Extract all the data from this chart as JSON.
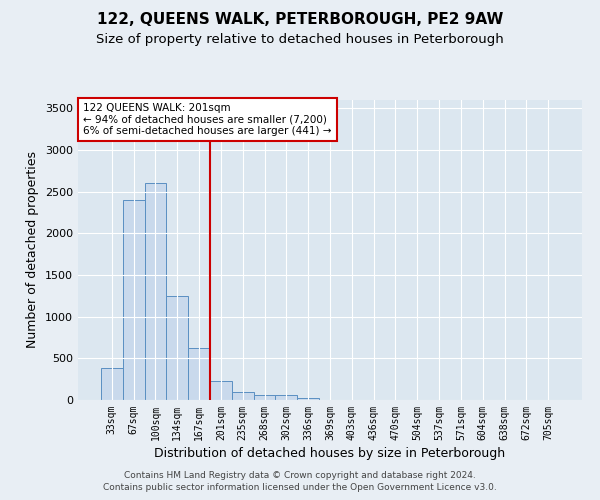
{
  "title": "122, QUEENS WALK, PETERBOROUGH, PE2 9AW",
  "subtitle": "Size of property relative to detached houses in Peterborough",
  "xlabel": "Distribution of detached houses by size in Peterborough",
  "ylabel": "Number of detached properties",
  "categories": [
    "33sqm",
    "67sqm",
    "100sqm",
    "134sqm",
    "167sqm",
    "201sqm",
    "235sqm",
    "268sqm",
    "302sqm",
    "336sqm",
    "369sqm",
    "403sqm",
    "436sqm",
    "470sqm",
    "504sqm",
    "537sqm",
    "571sqm",
    "604sqm",
    "638sqm",
    "672sqm",
    "705sqm"
  ],
  "values": [
    380,
    2400,
    2600,
    1250,
    630,
    230,
    100,
    65,
    55,
    30,
    0,
    0,
    0,
    0,
    0,
    0,
    0,
    0,
    0,
    0,
    0
  ],
  "bar_color": "#c9d9ec",
  "bar_edge_color": "#5a8fc2",
  "vline_color": "#cc0000",
  "vline_pos": 4.5,
  "annotation_line1": "122 QUEENS WALK: 201sqm",
  "annotation_line2": "← 94% of detached houses are smaller (7,200)",
  "annotation_line3": "6% of semi-detached houses are larger (441) →",
  "ylim": [
    0,
    3600
  ],
  "yticks": [
    0,
    500,
    1000,
    1500,
    2000,
    2500,
    3000,
    3500
  ],
  "footer1": "Contains HM Land Registry data © Crown copyright and database right 2024.",
  "footer2": "Contains public sector information licensed under the Open Government Licence v3.0.",
  "bg_color": "#e8eef4",
  "plot_bg_color": "#dce7f0"
}
